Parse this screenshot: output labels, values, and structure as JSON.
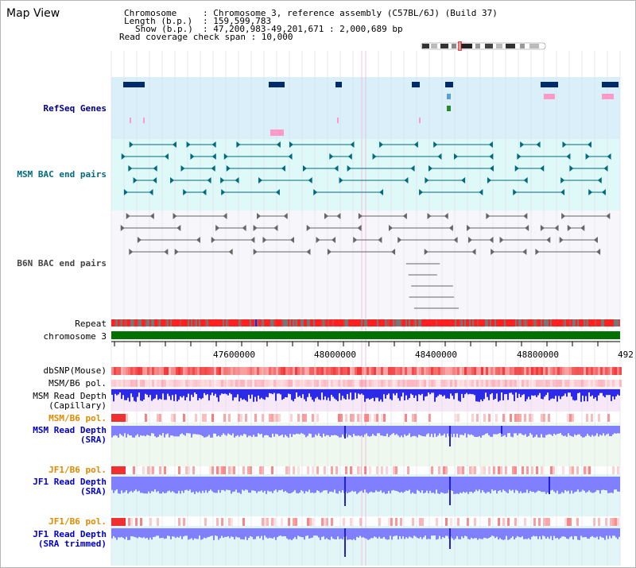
{
  "title": "Map View",
  "info": {
    "chromosome_key": "Chromosome",
    "chromosome_val": ": Chromosome 3, reference assembly (C57BL/6J) (Build 37)",
    "length_key": "Length (b.p.)",
    "length_val": ": 159,599,783",
    "show_key": "Show (b.p.)",
    "show_val": ": 47,200,983-49,201,671 : 2,000,689 bp",
    "coverage": "Read coverage check span : 10,000"
  },
  "tracks": {
    "refseq": "RefSeq Genes",
    "msm_bac": "MSM BAC end pairs",
    "b6n_bac": "B6N BAC end pairs",
    "repeat": "Repeat",
    "chromosome": "chromosome 3",
    "dbsnp": "dbSNP(Mouse)",
    "msm_b6_pol_1": "MSM/B6 pol.",
    "msm_read_depth_cap_1": "MSM Read Depth",
    "msm_read_depth_cap_2": "(Capillary)",
    "msm_b6_pol_2": "MSM/B6 pol.",
    "msm_read_depth_sra_1": "MSM Read Depth",
    "msm_read_depth_sra_2": "(SRA)",
    "jf1_b6_pol_1": "JF1/B6 pol.",
    "jf1_read_depth_1": "JF1 Read Depth",
    "jf1_read_depth_2": "(SRA)",
    "jf1_b6_pol_2": "JF1/B6 pol.",
    "jf1_read_depth_trim_1": "JF1 Read Depth",
    "jf1_read_depth_trim_2": "(SRA trimmed)"
  },
  "axis_ticks": [
    "47600000",
    "48000000",
    "48400000",
    "48800000",
    "492"
  ],
  "colors": {
    "refseq_bg": "#d9f0fa",
    "msm_bac_bg": "#dff8f8",
    "b6n_bac_bg": "#f7f7fb",
    "gene_navy": "#002b6b",
    "gene_pink": "#ff99c8",
    "bac_teal": "#006b80",
    "bac_gray": "#666666",
    "repeat_red": "#ff2020",
    "chrom_green": "#007000",
    "depth_blue": "#2020e0",
    "depth_light": "#8080ff"
  }
}
